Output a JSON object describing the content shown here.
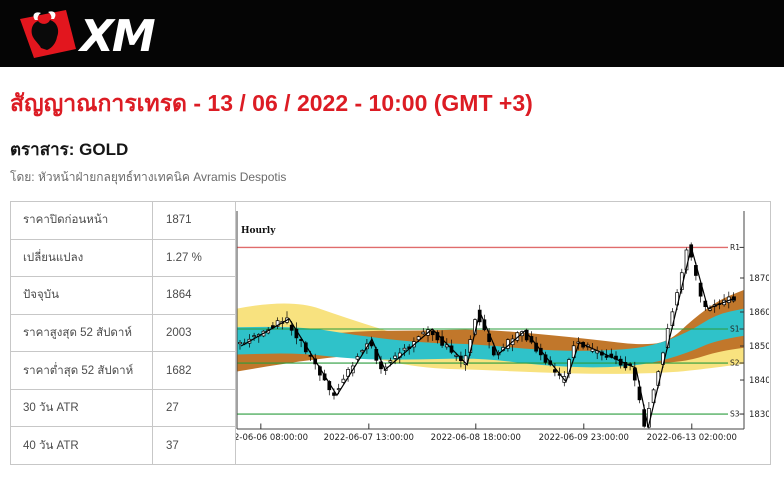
{
  "header": {
    "logo_text": "XM",
    "brand_color": "#e2161e"
  },
  "page": {
    "title": "สัญญาณการเทรด - 13 / 06 / 2022 - 10:00 (GMT +3)",
    "instrument_label": "ตราสาร: GOLD",
    "byline": "โดย: หัวหน้าฝ่ายกลยุทธ์ทางเทคนิค Avramis Despotis"
  },
  "stats_table": {
    "rows": [
      {
        "label": "ราคาปิดก่อนหน้า",
        "value": "1871"
      },
      {
        "label": "เปลี่ยนแปลง",
        "value": "1.27 %"
      },
      {
        "label": "ปัจจุบัน",
        "value": "1864"
      },
      {
        "label": "ราคาสูงสุด 52 สัปดาห์",
        "value": "2003"
      },
      {
        "label": "ราคาต่ำสุด 52 สัปดาห์",
        "value": "1682"
      },
      {
        "label": "30 วัน ATR",
        "value": "27"
      },
      {
        "label": "40 วัน ATR",
        "value": "37"
      }
    ]
  },
  "chart_data": {
    "type": "candlestick",
    "timeframe_label": "Hourly",
    "instrument": "GOLD",
    "y_axis": {
      "top": 1889.7,
      "bottom": 1825.6
    },
    "y_ticks": [
      1870,
      1860,
      1850,
      1840,
      1830
    ],
    "x_ticks": [
      {
        "f": 0.047,
        "label": "2-06-06 08:00:00",
        "clip": "start"
      },
      {
        "f": 0.26,
        "label": "2022-06-07 13:00:00"
      },
      {
        "f": 0.471,
        "label": "2022-06-08 18:00:00"
      },
      {
        "f": 0.684,
        "label": "2022-06-09 23:00:00"
      },
      {
        "f": 0.897,
        "label": "2022-06-13 02:00:00"
      }
    ],
    "levels": [
      {
        "name": "R1",
        "price": 1879,
        "color": "#e06c6c"
      },
      {
        "name": "S1",
        "price": 1855,
        "color": "#2b9c3e"
      },
      {
        "name": "S2",
        "price": 1845,
        "color": "#2b9c3e"
      },
      {
        "name": "S3",
        "price": 1830,
        "color": "#2b9c3e"
      }
    ],
    "zigzag": [
      [
        0.008,
        1850
      ],
      [
        0.103,
        1858
      ],
      [
        0.197,
        1835.5
      ],
      [
        0.266,
        1852
      ],
      [
        0.292,
        1843
      ],
      [
        0.385,
        1855
      ],
      [
        0.454,
        1844.5
      ],
      [
        0.479,
        1860
      ],
      [
        0.515,
        1847.5
      ],
      [
        0.568,
        1854.5
      ],
      [
        0.649,
        1839.5
      ],
      [
        0.675,
        1851
      ],
      [
        0.787,
        1843.5
      ],
      [
        0.811,
        1826
      ],
      [
        0.896,
        1879
      ],
      [
        0.929,
        1861
      ],
      [
        0.98,
        1864
      ]
    ],
    "close_marker_price": 1864,
    "bands": [
      {
        "name": "yellow",
        "color": "#f8e27f",
        "points": [
          [
            0,
            1855,
            6
          ],
          [
            0.105,
            1857.5,
            6.5
          ],
          [
            0.22,
            1853,
            5
          ],
          [
            0.36,
            1847.5,
            4
          ],
          [
            0.48,
            1846,
            3
          ],
          [
            0.6,
            1845,
            2.8
          ],
          [
            0.72,
            1844.5,
            2.8
          ],
          [
            0.83,
            1845,
            3
          ],
          [
            0.9,
            1846,
            3.2
          ],
          [
            1,
            1848,
            3.2
          ]
        ]
      },
      {
        "name": "brown",
        "color": "#c1772b",
        "points": [
          [
            0,
            1845.5,
            3
          ],
          [
            0.12,
            1849,
            3.5
          ],
          [
            0.24,
            1851,
            3.5
          ],
          [
            0.36,
            1851.5,
            3
          ],
          [
            0.48,
            1852,
            3
          ],
          [
            0.6,
            1850.5,
            3
          ],
          [
            0.71,
            1849,
            2.8
          ],
          [
            0.79,
            1847.5,
            2.8
          ],
          [
            0.85,
            1848,
            3
          ],
          [
            0.9,
            1852,
            6
          ],
          [
            0.95,
            1856,
            7.5
          ],
          [
            1,
            1858,
            8.5
          ]
        ]
      },
      {
        "name": "cyan",
        "color": "#2fc2c9",
        "points": [
          [
            0,
            1851.5,
            4
          ],
          [
            0.12,
            1852,
            4
          ],
          [
            0.24,
            1849.5,
            3.5
          ],
          [
            0.36,
            1848.5,
            2.5
          ],
          [
            0.48,
            1848.5,
            2
          ],
          [
            0.6,
            1846.5,
            2.2
          ],
          [
            0.71,
            1846,
            2.5
          ],
          [
            0.81,
            1847,
            2.5
          ],
          [
            0.89,
            1851,
            3
          ],
          [
            0.945,
            1855.5,
            3.8
          ],
          [
            1,
            1857,
            4
          ]
        ]
      }
    ]
  }
}
